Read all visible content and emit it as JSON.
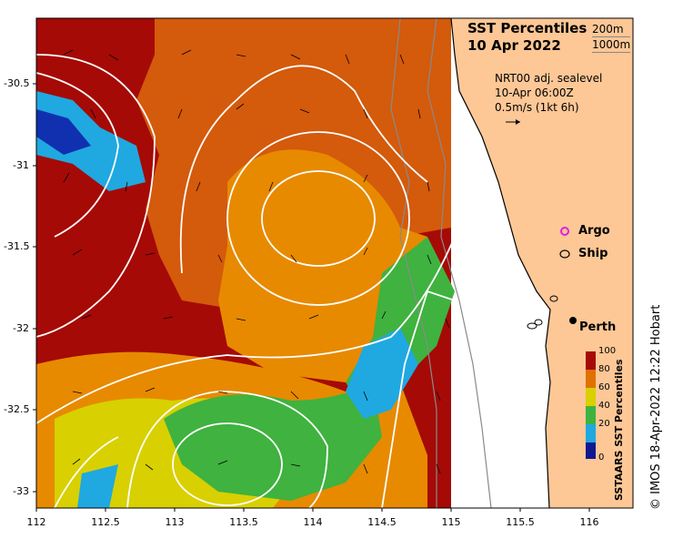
{
  "map": {
    "title_line1": "SST Percentiles",
    "title_line2": "10 Apr 2022",
    "isobath_200": "200m",
    "isobath_1000": "1000m",
    "velocity_title": "NRT00 adj. sealevel",
    "velocity_time": "10-Apr 06:00Z",
    "velocity_scale": "0.5m/s (1kt 6h)",
    "legend_argo": "Argo",
    "legend_ship": "Ship",
    "city": "Perth",
    "credit": "© IMOS 18-Apr-2022 12:22 Hobart",
    "colorbar_title": "SSTAARS SST Percentiles",
    "colorbar_ticks": [
      "100",
      "80",
      "60",
      "40",
      "20",
      "0"
    ],
    "lat_ticks": [
      "-30.5",
      "-31",
      "-31.5",
      "-32",
      "-32.5",
      "-33"
    ],
    "lon_ticks": [
      "112",
      "112.5",
      "113",
      "113.5",
      "114",
      "114.5",
      "115",
      "115.5",
      "116"
    ],
    "colors": {
      "land": "#FDC796",
      "dark_red": "#A50A06",
      "orange_red": "#D45A0C",
      "orange": "#E78A00",
      "yellow": "#D8D000",
      "green": "#3FB23F",
      "cyan": "#20A8E0",
      "blue": "#1030B0"
    }
  }
}
